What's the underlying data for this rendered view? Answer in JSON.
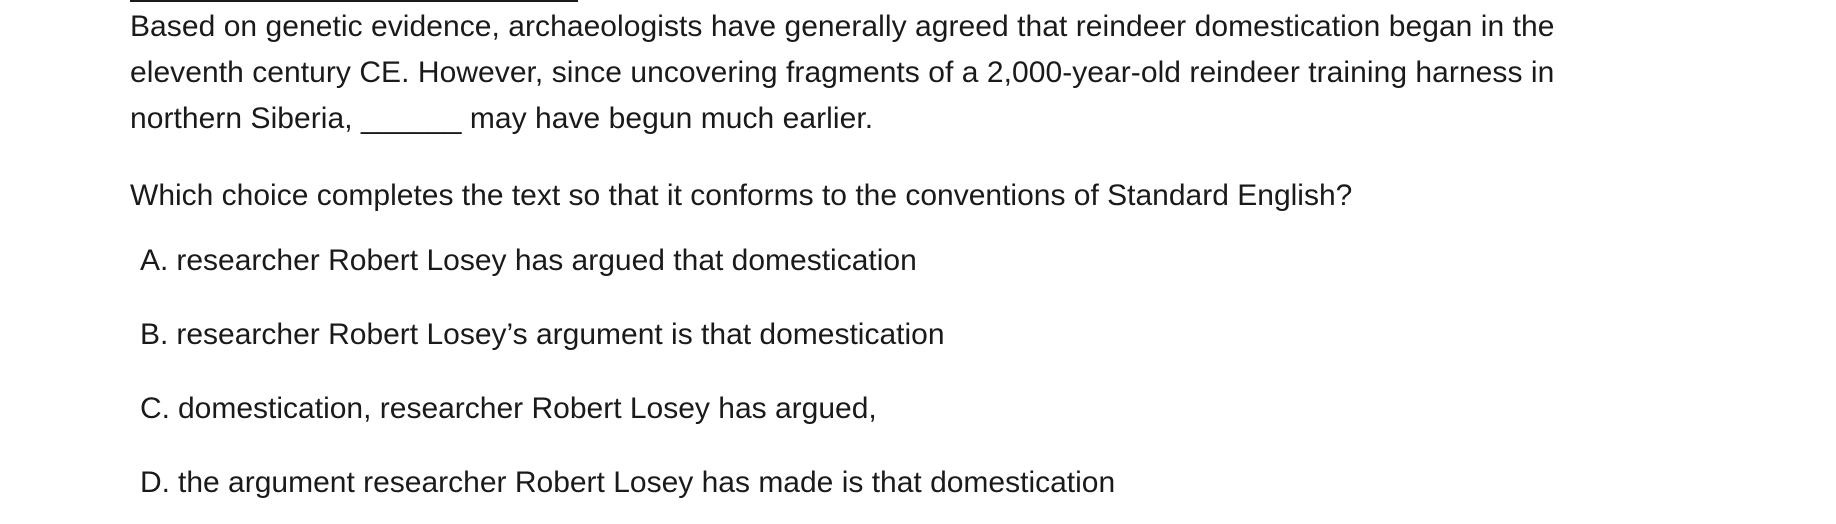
{
  "passage": {
    "lines": [
      "Based on genetic evidence, archaeologists have generally agreed that reindeer domestication began in the",
      "eleventh century CE. However, since uncovering fragments of a 2,000-year-old reindeer training harness in",
      "northern Siberia, ______ may have begun much earlier."
    ]
  },
  "question": "Which choice completes the text so that it conforms to the conventions of Standard English?",
  "choices": [
    {
      "letter": "A.",
      "text": "researcher Robert Losey has argued that domestication"
    },
    {
      "letter": "B.",
      "text": "researcher Robert Losey’s argument is that domestication"
    },
    {
      "letter": "C.",
      "text": "domestication, researcher Robert Losey has argued,"
    },
    {
      "letter": "D.",
      "text": "the argument researcher Robert Losey has made is that domestication"
    }
  ]
}
